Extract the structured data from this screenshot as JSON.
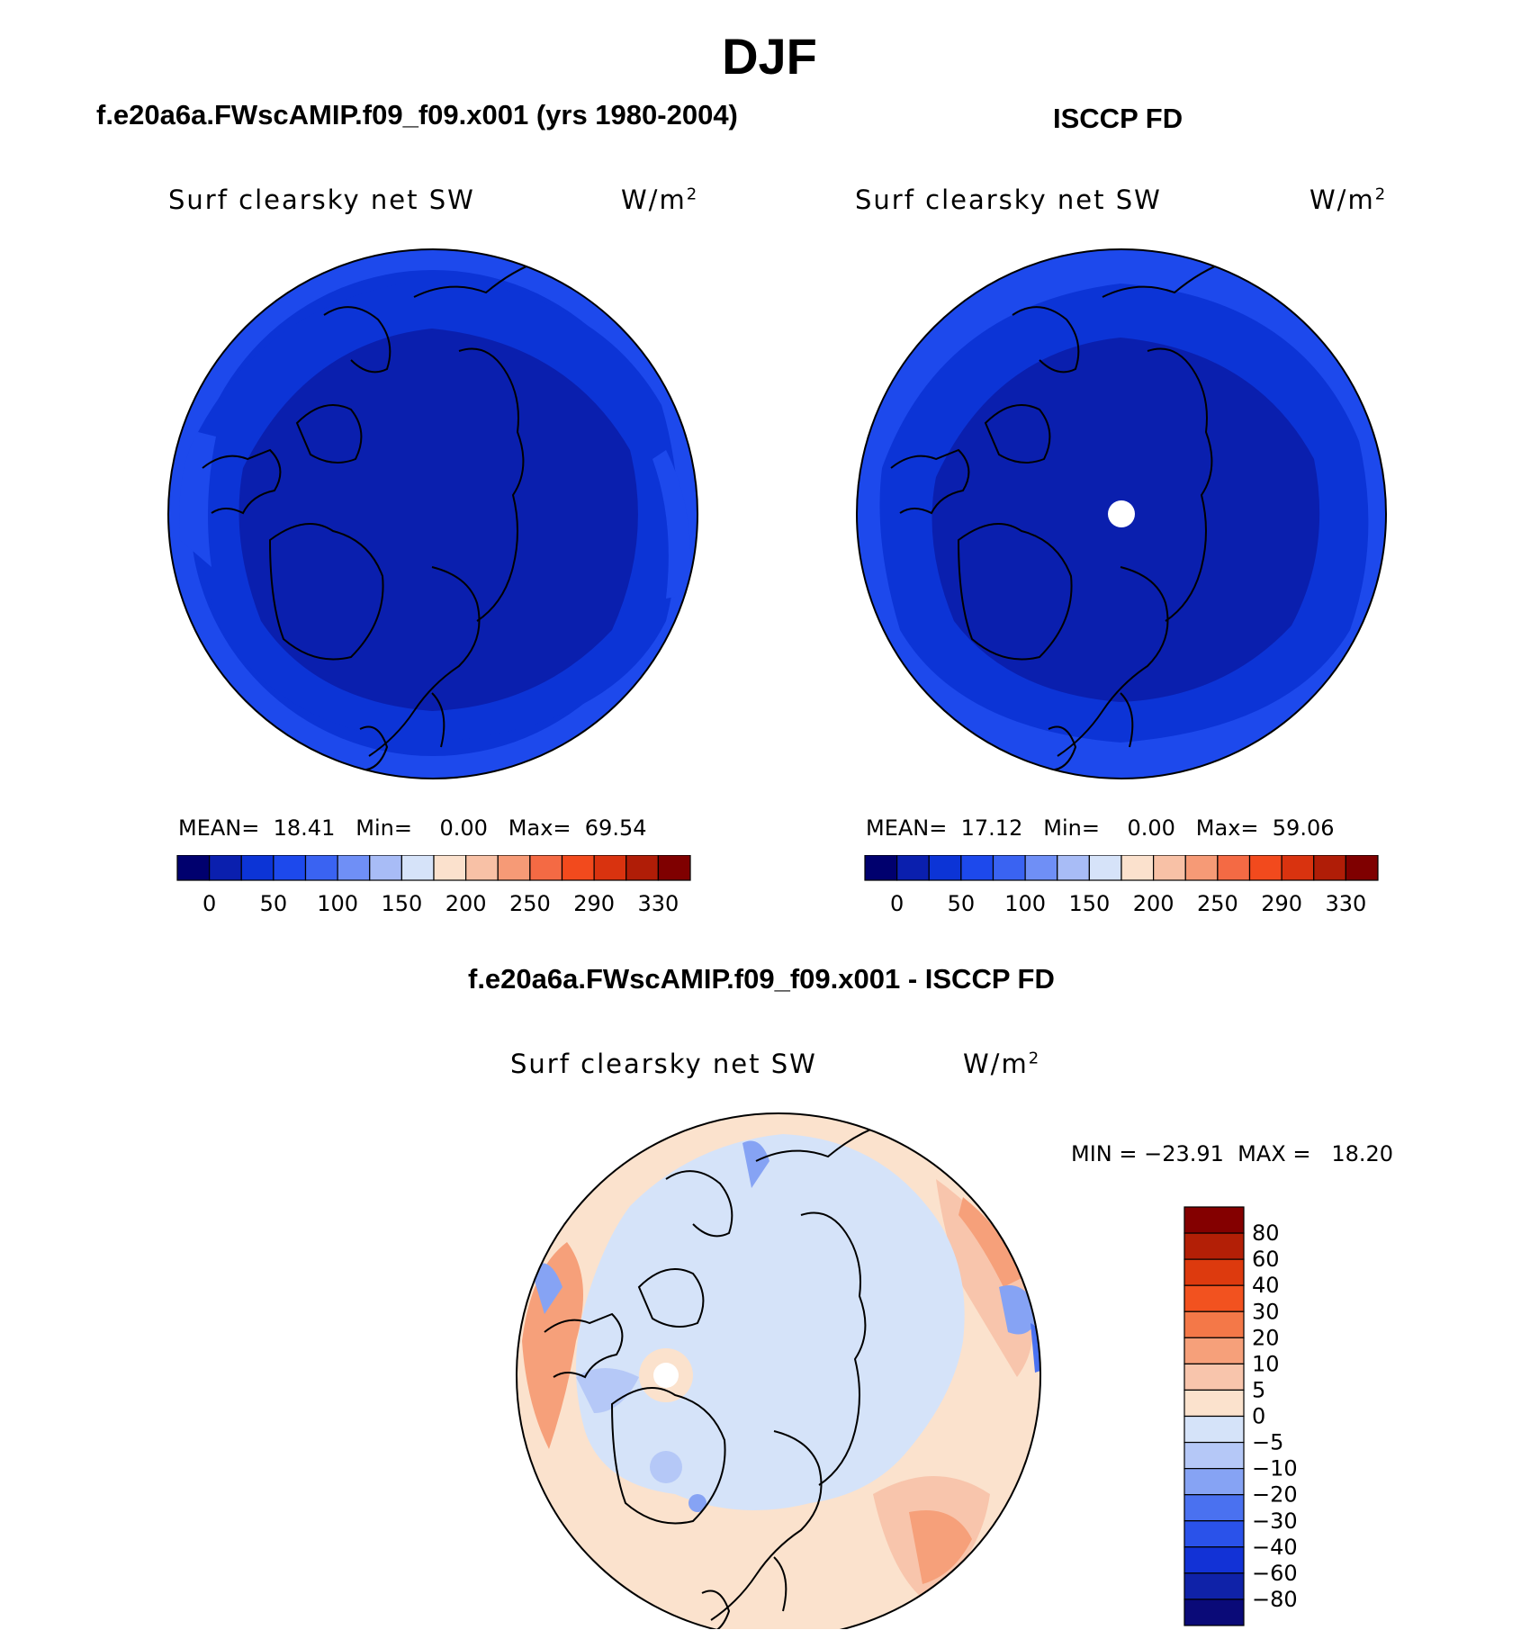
{
  "figure": {
    "title": "DJF",
    "colors": {
      "abs_palette": [
        "#00006e",
        "#0a1fae",
        "#0c34d6",
        "#1d49ec",
        "#3a63f2",
        "#6f8ff6",
        "#a8bcf6",
        "#d6e3f9",
        "#fbe1cd",
        "#f8c1a6",
        "#f69a76",
        "#f46a44",
        "#f24a1d",
        "#d9330f",
        "#b01d07",
        "#7f0000"
      ],
      "diff_palette": [
        "#0a0a78",
        "#0f22a8",
        "#1232d6",
        "#2a52ea",
        "#4a71f0",
        "#86a3f4",
        "#b5c8f7",
        "#d5e3f9",
        "#fbe2cd",
        "#f8c5ac",
        "#f6a07a",
        "#f47848",
        "#f2521f",
        "#dd3a0e",
        "#b31f06",
        "#840000"
      ],
      "land_outline": "#000000",
      "missing": "#ffffff"
    }
  },
  "panels": [
    {
      "case_title": "f.e20a6a.FWscAMIP.f09_f09.x001 (yrs 1980-2004)",
      "variable": "Surf clearsky net SW",
      "units": "W/m",
      "units_sup": "2",
      "mean_label": "MEAN=",
      "mean": "18.41",
      "min_label": "Min=",
      "min": "0.00",
      "max_label": "Max=",
      "max": "69.54",
      "colorbar_labels": [
        "0",
        "50",
        "100",
        "150",
        "200",
        "250",
        "290",
        "330"
      ],
      "has_missing_pole": false
    },
    {
      "case_title": "ISCCP FD",
      "variable": "Surf clearsky net SW",
      "units": "W/m",
      "units_sup": "2",
      "mean_label": "MEAN=",
      "mean": "17.12",
      "min_label": "Min=",
      "min": "0.00",
      "max_label": "Max=",
      "max": "59.06",
      "colorbar_labels": [
        "0",
        "50",
        "100",
        "150",
        "200",
        "250",
        "290",
        "330"
      ],
      "has_missing_pole": true
    }
  ],
  "diff": {
    "case_title": "f.e20a6a.FWscAMIP.f09_f09.x001 - ISCCP FD",
    "variable": "Surf clearsky net SW",
    "units": "W/m",
    "units_sup": "2",
    "minmax_text": "MIN = −23.91  MAX =   18.20",
    "colorbar_labels": [
      "80",
      "60",
      "40",
      "30",
      "20",
      "10",
      "5",
      "0",
      "−5",
      "−10",
      "−20",
      "−30",
      "−40",
      "−60",
      "−80"
    ]
  },
  "chart_data": [
    {
      "type": "heatmap",
      "projection": "north polar stereographic",
      "title": "Surf clearsky net SW",
      "units": "W/m2",
      "stats": {
        "mean": 18.41,
        "min": 0.0,
        "max": 69.54
      },
      "colorbar_levels": [
        0,
        50,
        100,
        150,
        200,
        250,
        290,
        330
      ]
    },
    {
      "type": "heatmap",
      "projection": "north polar stereographic",
      "title": "Surf clearsky net SW",
      "units": "W/m2",
      "stats": {
        "mean": 17.12,
        "min": 0.0,
        "max": 59.06
      },
      "colorbar_levels": [
        0,
        50,
        100,
        150,
        200,
        250,
        290,
        330
      ]
    },
    {
      "type": "heatmap",
      "projection": "north polar stereographic",
      "title": "Surf clearsky net SW",
      "units": "W/m2",
      "stats": {
        "min": -23.91,
        "max": 18.2
      },
      "colorbar_levels": [
        -80,
        -60,
        -40,
        -30,
        -20,
        -10,
        -5,
        0,
        5,
        10,
        20,
        30,
        40,
        60,
        80
      ]
    }
  ]
}
